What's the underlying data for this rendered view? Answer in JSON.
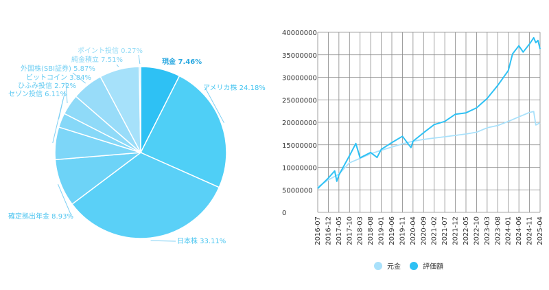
{
  "colors": {
    "accent": "#2ec1f4",
    "light": "#a9e1fb",
    "grid": "#888888",
    "leader": "#7fd0f4",
    "text": "#333333"
  },
  "chart_data": [
    {
      "type": "pie",
      "slices": [
        {
          "label": "現金 7.46%",
          "value": 7.46,
          "color": "#2ec1f4",
          "text_color": "#2aa8e0",
          "bold": true
        },
        {
          "label": "アメリカ株 24.18%",
          "value": 24.18,
          "color": "#4fcff6",
          "text_color": "#44c4f0"
        },
        {
          "label": "日本株 33.11%",
          "value": 33.11,
          "color": "#5ad0f7",
          "text_color": "#44c4f0"
        },
        {
          "label": "確定拠出年金 8.93%",
          "value": 8.93,
          "color": "#6dd3f7",
          "text_color": "#52c6f0"
        },
        {
          "label": "セゾン投信 6.11%",
          "value": 6.11,
          "color": "#7dd6f8",
          "text_color": "#5cc8f1"
        },
        {
          "label": "ひふみ投信 2.72%",
          "value": 2.72,
          "color": "#86d8f8",
          "text_color": "#62caf1"
        },
        {
          "label": "ビットコイン 3.84%",
          "value": 3.84,
          "color": "#8fdaf8",
          "text_color": "#68ccf2"
        },
        {
          "label": "外国株(SBI証券) 5.87%",
          "value": 5.87,
          "color": "#98dcf9",
          "text_color": "#72cff3"
        },
        {
          "label": "純金積立 7.51%",
          "value": 7.51,
          "color": "#a6e1fa",
          "text_color": "#80d3f4"
        },
        {
          "label": "ポイント投信 0.27%",
          "value": 0.27,
          "color": "#b4e6fb",
          "text_color": "#93dbf6"
        }
      ]
    },
    {
      "type": "line",
      "ylim": [
        0,
        40000000
      ],
      "y_ticks": [
        "0",
        "5000000",
        "10000000",
        "15000000",
        "20000000",
        "25000000",
        "30000000",
        "35000000",
        "40000000"
      ],
      "x_labels": [
        "2016-07",
        "2016-12",
        "2017-05",
        "2017-10",
        "2018-03",
        "2018-08",
        "2019-01",
        "2019-06",
        "2019-11",
        "2020-04",
        "2020-09",
        "2021-02",
        "2021-07",
        "2021-12",
        "2022-05",
        "2022-10",
        "2023-03",
        "2023-08",
        "2024-01",
        "2024-06",
        "2024-11",
        "2025-04"
      ],
      "legend_position": "bottom",
      "series": [
        {
          "name": "元金",
          "color": "#a9e1fb",
          "points": [
            [
              "2016-07",
              5600000
            ],
            [
              "2016-12",
              7200000
            ],
            [
              "2017-05",
              8500000
            ],
            [
              "2017-10",
              11000000
            ],
            [
              "2018-03",
              12000000
            ],
            [
              "2018-08",
              13000000
            ],
            [
              "2019-01",
              13800000
            ],
            [
              "2019-06",
              14500000
            ],
            [
              "2019-11",
              15200000
            ],
            [
              "2020-04",
              15800000
            ],
            [
              "2020-09",
              16200000
            ],
            [
              "2021-02",
              16500000
            ],
            [
              "2021-07",
              16800000
            ],
            [
              "2021-12",
              17100000
            ],
            [
              "2022-05",
              17400000
            ],
            [
              "2022-10",
              17800000
            ],
            [
              "2023-03",
              18800000
            ],
            [
              "2023-08",
              19300000
            ],
            [
              "2024-01",
              20200000
            ],
            [
              "2024-06",
              21200000
            ],
            [
              "2024-11",
              22200000
            ],
            [
              "2025-01",
              22400000
            ],
            [
              "2025-02",
              19400000
            ],
            [
              "2025-04",
              19900000
            ]
          ]
        },
        {
          "name": "評価額",
          "color": "#2ec1f4",
          "points": [
            [
              "2016-07",
              5300000
            ],
            [
              "2016-12",
              7600000
            ],
            [
              "2017-03",
              9200000
            ],
            [
              "2017-04",
              6900000
            ],
            [
              "2017-05",
              8300000
            ],
            [
              "2017-10",
              12600000
            ],
            [
              "2018-01",
              15300000
            ],
            [
              "2018-03",
              12100000
            ],
            [
              "2018-08",
              13300000
            ],
            [
              "2018-11",
              12200000
            ],
            [
              "2019-01",
              14000000
            ],
            [
              "2019-06",
              15500000
            ],
            [
              "2019-11",
              16900000
            ],
            [
              "2020-03",
              14400000
            ],
            [
              "2020-04",
              15800000
            ],
            [
              "2020-09",
              17700000
            ],
            [
              "2021-02",
              19500000
            ],
            [
              "2021-07",
              20200000
            ],
            [
              "2021-12",
              21800000
            ],
            [
              "2022-05",
              22100000
            ],
            [
              "2022-10",
              23200000
            ],
            [
              "2023-03",
              25300000
            ],
            [
              "2023-08",
              28200000
            ],
            [
              "2024-01",
              31500000
            ],
            [
              "2024-03",
              35200000
            ],
            [
              "2024-06",
              37000000
            ],
            [
              "2024-08",
              35600000
            ],
            [
              "2024-11",
              37400000
            ],
            [
              "2025-01",
              38800000
            ],
            [
              "2025-02",
              37700000
            ],
            [
              "2025-03",
              38200000
            ],
            [
              "2025-04",
              36300000
            ]
          ]
        }
      ]
    }
  ]
}
